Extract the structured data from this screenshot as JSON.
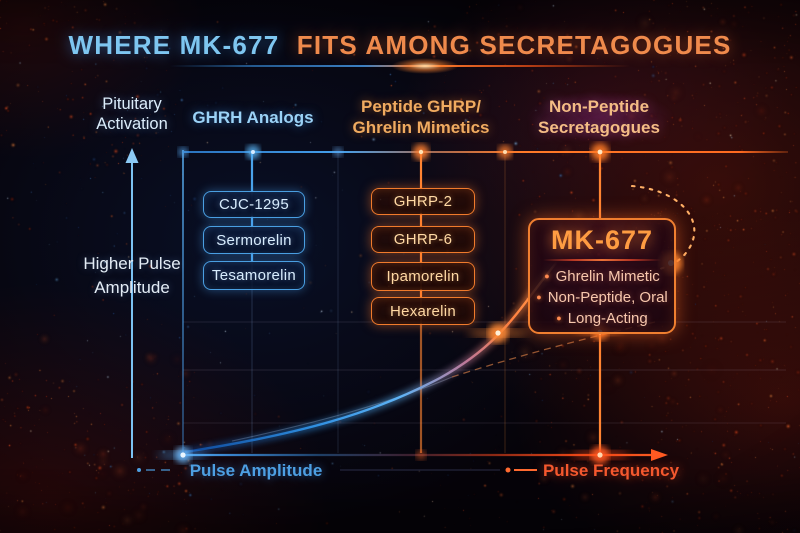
{
  "title": {
    "lead": "WHERE MK-677",
    "tail": "FITS AMONG SECRETAGOGUES"
  },
  "axes": {
    "y_title": "Pituitary Activation",
    "y_note": "Higher Pulse Amplitude",
    "x_left": "Pulse Amplitude",
    "x_right": "Pulse Frequency"
  },
  "columns": [
    {
      "label_line1": "GHRH Analogs",
      "label_line2": "",
      "items": [
        "CJC-1295",
        "Sermorelin",
        "Tesamorelin"
      ]
    },
    {
      "label_line1": "Peptide GHRP/",
      "label_line2": "Ghrelin Mimetics",
      "items": [
        "GHRP-2",
        "GHRP-6",
        "Ipamorelin",
        "Hexarelin"
      ]
    },
    {
      "label_line1": "Non-Peptide",
      "label_line2": "Secretagogues",
      "items": []
    }
  ],
  "highlight_card": {
    "name": "MK-677",
    "traits": [
      "Ghrelin Mimetic",
      "Non-Peptide, Oral",
      "Long-Acting"
    ]
  },
  "colors": {
    "blue_accent": "#5fb8f2",
    "orange_accent": "#ff7a2e",
    "red_accent": "#e8401c"
  }
}
